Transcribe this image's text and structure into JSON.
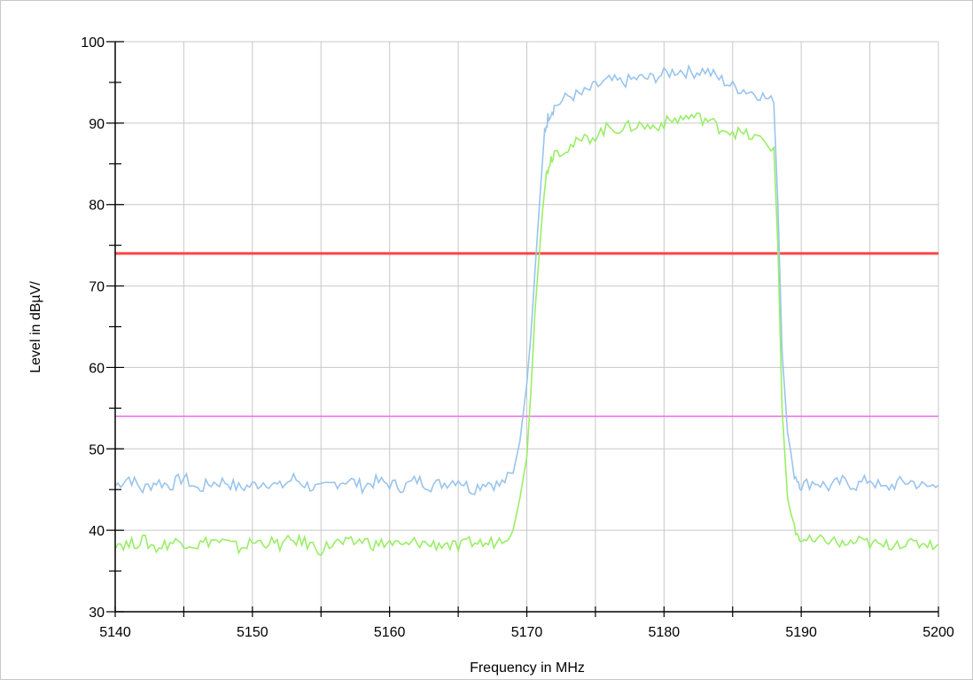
{
  "chart_data": {
    "type": "line",
    "title": "",
    "xlabel": "Frequency in MHz",
    "ylabel": "Level in dBµV/",
    "xlim": [
      5140,
      5200
    ],
    "ylim": [
      30,
      100
    ],
    "x_ticks": [
      "5140",
      "5150",
      "5160",
      "5170",
      "5180",
      "5190",
      "5200"
    ],
    "y_ticks": [
      "30",
      "40",
      "50",
      "60",
      "70",
      "80",
      "90",
      "100"
    ],
    "grid": true,
    "legend": "none",
    "series": [
      {
        "color": "#99c4ee",
        "x": [
          5140,
          5141,
          5142,
          5143,
          5144,
          5145,
          5146,
          5147,
          5148,
          5149,
          5150,
          5151,
          5152,
          5153,
          5154,
          5155,
          5156,
          5157,
          5158,
          5159,
          5160,
          5161,
          5162,
          5163,
          5164,
          5165,
          5166,
          5167,
          5168,
          5169,
          5169.5,
          5170,
          5170.3,
          5170.6,
          5171,
          5171.3,
          5171.6,
          5172,
          5173,
          5174,
          5175,
          5176,
          5177,
          5178,
          5179,
          5180,
          5181,
          5182,
          5183,
          5184,
          5185,
          5186,
          5187,
          5188,
          5188.3,
          5188.6,
          5189,
          5189.5,
          5190,
          5191,
          5192,
          5193,
          5194,
          5195,
          5196,
          5197,
          5198,
          5199,
          5200
        ],
        "y": [
          45.5,
          46.5,
          45,
          46,
          45.5,
          46.5,
          45,
          45.8,
          46,
          45.2,
          45.5,
          46,
          45.3,
          46.4,
          45.5,
          45,
          45.8,
          46.2,
          45.4,
          46,
          45.7,
          45.3,
          46.2,
          45.5,
          45.8,
          46.3,
          45,
          46,
          45.5,
          47,
          51,
          58,
          64,
          72,
          82,
          89,
          91,
          92,
          93.3,
          93.5,
          94.5,
          95.2,
          95,
          95.5,
          95.5,
          96,
          96.5,
          96.2,
          96.5,
          95.5,
          94.5,
          94,
          93.5,
          92.5,
          80,
          62,
          52,
          47,
          45.5,
          46,
          45.3,
          46,
          45.5,
          46.3,
          45,
          45.8,
          46,
          45.3,
          45.5
        ]
      },
      {
        "color": "#99ee66",
        "x": [
          5140,
          5141,
          5142,
          5143,
          5144,
          5145,
          5146,
          5147,
          5148,
          5149,
          5150,
          5151,
          5152,
          5153,
          5154,
          5155,
          5156,
          5157,
          5158,
          5159,
          5160,
          5161,
          5162,
          5163,
          5164,
          5165,
          5166,
          5167,
          5168,
          5169,
          5169.5,
          5170,
          5170.3,
          5170.6,
          5171,
          5171.3,
          5171.6,
          5172,
          5173,
          5174,
          5175,
          5176,
          5177,
          5178,
          5179,
          5180,
          5181,
          5182,
          5183,
          5184,
          5185,
          5186,
          5187,
          5188,
          5188.3,
          5188.6,
          5189,
          5189.5,
          5190,
          5191,
          5192,
          5193,
          5194,
          5195,
          5196,
          5197,
          5198,
          5199,
          5200
        ],
        "y": [
          38.5,
          38.2,
          38.8,
          37.8,
          38.5,
          38.6,
          38.2,
          38.8,
          38.5,
          37.8,
          38.5,
          38.6,
          38.2,
          38.8,
          38.4,
          37.6,
          38.5,
          38.3,
          38.8,
          38.2,
          38.5,
          38,
          38.6,
          38.2,
          38.4,
          37.8,
          38.6,
          38.3,
          38.8,
          40,
          44,
          49,
          57,
          67,
          76,
          82.5,
          85,
          86.5,
          87,
          87.8,
          88.5,
          89.5,
          89.3,
          89.8,
          89.5,
          90,
          90.5,
          90.8,
          90.5,
          89.5,
          89,
          88.5,
          88,
          87,
          75,
          55,
          44,
          40,
          38.8,
          38.5,
          38.9,
          38.2,
          38.6,
          38.4,
          38,
          38.6,
          38.2,
          38.5,
          38.3
        ]
      }
    ],
    "limit_lines": [
      {
        "y": 74,
        "color": "#ff4444"
      },
      {
        "y": 54,
        "color": "#ee66ee"
      }
    ]
  }
}
